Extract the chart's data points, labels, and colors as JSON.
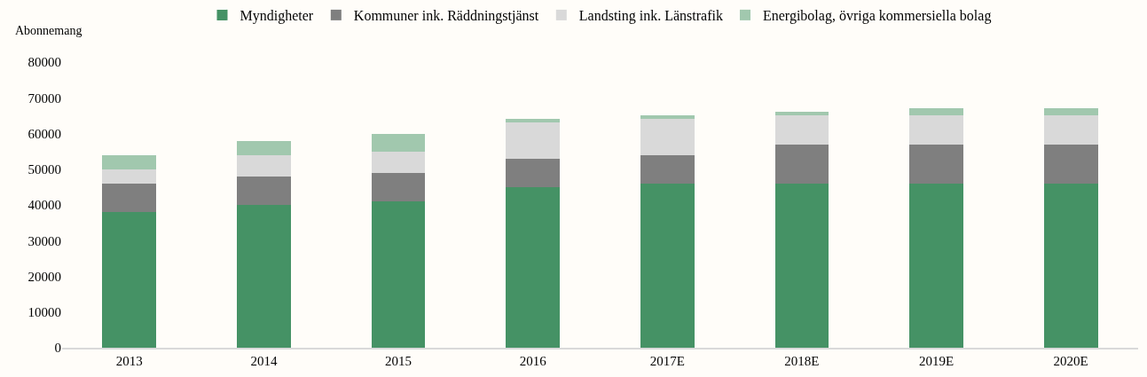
{
  "chart_data": {
    "type": "bar",
    "stacked": true,
    "ylabel": "Abonnemang",
    "categories": [
      "2013",
      "2014",
      "2015",
      "2016",
      "2017E",
      "2018E",
      "2019E",
      "2020E"
    ],
    "series": [
      {
        "name": "Myndigheter",
        "color": "#459265",
        "values": [
          38000,
          40000,
          41000,
          45000,
          46000,
          46000,
          46000,
          46000
        ]
      },
      {
        "name": "Kommuner ink. Räddningstjänst",
        "color": "#7f7f7f",
        "values": [
          8000,
          8000,
          8000,
          8000,
          8000,
          11000,
          11000,
          11000
        ]
      },
      {
        "name": "Landsting ink. Länstrafik",
        "color": "#d9d9d9",
        "values": [
          4000,
          6000,
          6000,
          10000,
          10000,
          8000,
          8000,
          8000
        ]
      },
      {
        "name": "Energibolag, övriga kommersiella bolag",
        "color": "#a1c8ae",
        "values": [
          4000,
          4000,
          5000,
          1000,
          1000,
          1000,
          2000,
          2000
        ]
      }
    ],
    "ylim": [
      0,
      80000
    ],
    "yticks": [
      0,
      10000,
      20000,
      30000,
      40000,
      50000,
      60000,
      70000,
      80000
    ],
    "grid": false,
    "legend": "top"
  }
}
